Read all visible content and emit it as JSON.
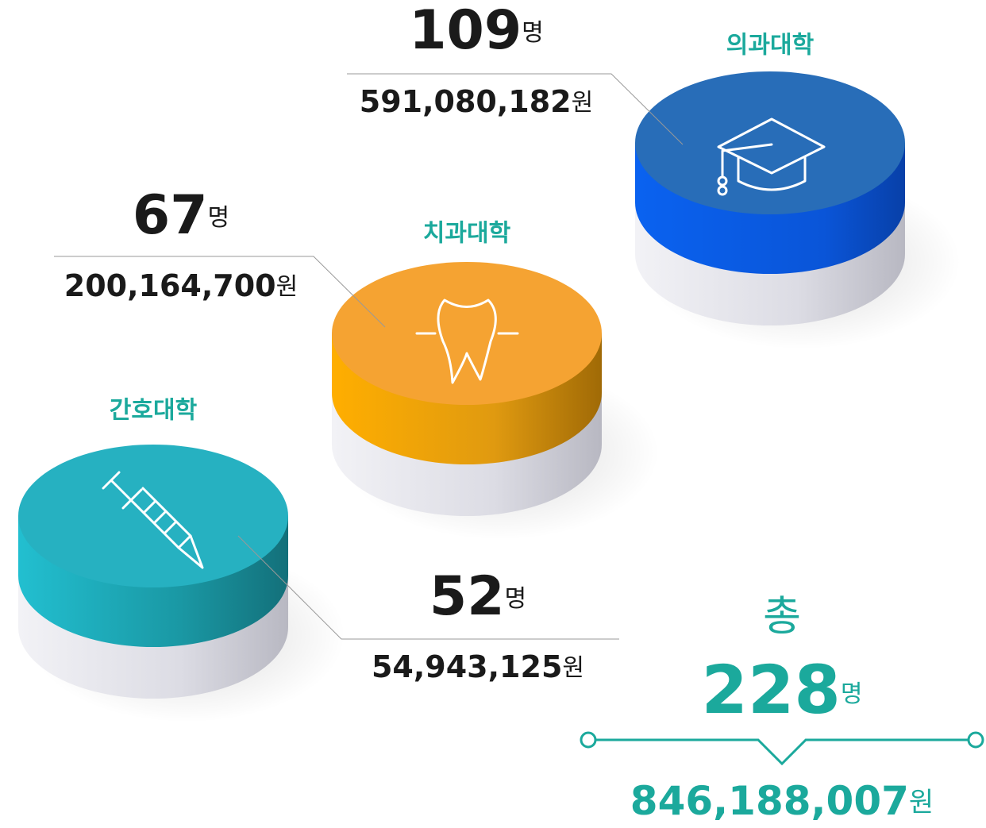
{
  "colleges": [
    {
      "label": "의과대학",
      "count": "109",
      "count_unit": "명",
      "amount": "591,080,182",
      "amount_unit": "원"
    },
    {
      "label": "치과대학",
      "count": "67",
      "count_unit": "명",
      "amount": "200,164,700",
      "amount_unit": "원"
    },
    {
      "label": "간호대학",
      "count": "52",
      "count_unit": "명",
      "amount": "54,943,125",
      "amount_unit": "원"
    }
  ],
  "total": {
    "prefix": "총",
    "count": "228",
    "count_unit": "명",
    "amount": "846,188,007",
    "amount_unit": "원"
  }
}
